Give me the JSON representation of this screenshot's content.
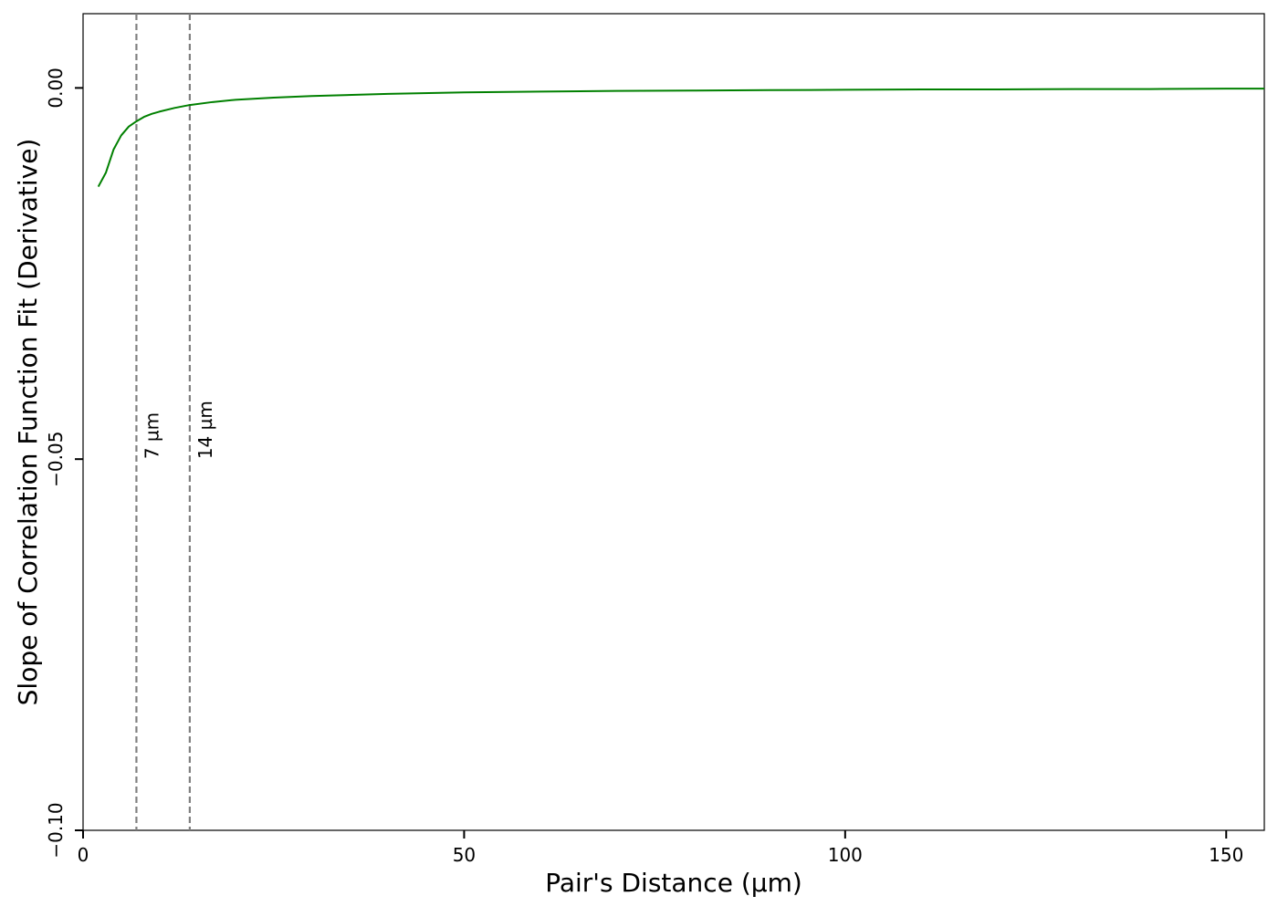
{
  "chart_data": {
    "type": "line",
    "title": "",
    "xlabel": "Pair's Distance (µm)",
    "ylabel": "Slope of Correlation Function Fit (Derivative)",
    "xlim": [
      0,
      155
    ],
    "ylim": [
      -0.1,
      0.01
    ],
    "x_ticks": [
      {
        "value": 0,
        "label": "0"
      },
      {
        "value": 50,
        "label": "50"
      },
      {
        "value": 100,
        "label": "100"
      },
      {
        "value": 150,
        "label": "150"
      }
    ],
    "y_ticks": [
      {
        "value": 0.0,
        "label": "0.00"
      },
      {
        "value": -0.05,
        "label": "−0.05"
      },
      {
        "value": -0.1,
        "label": "−0.10"
      }
    ],
    "grid": false,
    "legend": "none",
    "series": [
      {
        "color": "#008000",
        "x": [
          2,
          3,
          4,
          5,
          6,
          7,
          8,
          9,
          10,
          12,
          14,
          17,
          20,
          25,
          30,
          40,
          50,
          60,
          70,
          80,
          90,
          100,
          110,
          120,
          130,
          140,
          150,
          155
        ],
        "y": [
          -0.0133,
          -0.0114,
          -0.0083,
          -0.0064,
          -0.0052,
          -0.0045,
          -0.0039,
          -0.0035,
          -0.0032,
          -0.0027,
          -0.0023,
          -0.0019,
          -0.0016,
          -0.0013,
          -0.0011,
          -0.0008,
          -0.0006,
          -0.0005,
          -0.0004,
          -0.00035,
          -0.0003,
          -0.00025,
          -0.0002,
          -0.0002,
          -0.00015,
          -0.00015,
          -0.0001,
          -0.0001
        ]
      }
    ],
    "vlines": [
      {
        "x": 7,
        "label": "7 µm",
        "color": "#808080",
        "style": "dashed"
      },
      {
        "x": 14,
        "label": "14 µm",
        "color": "#808080",
        "style": "dashed"
      }
    ]
  }
}
